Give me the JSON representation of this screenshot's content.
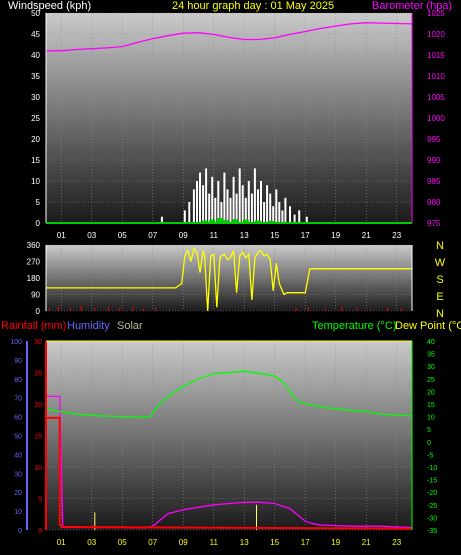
{
  "header": {
    "windspeed_label": "Windspeed (kph)",
    "title": "24 hour graph day : 01 May 2025",
    "barometer_label": "Barometer (hpa)"
  },
  "compass": [
    "N",
    "W",
    "S",
    "E",
    "N"
  ],
  "lower_header": {
    "rainfall_label": "Rainfall (mm)",
    "humidity_label": "Humidity",
    "solar_label": "Solar",
    "temperature_label": "Temperature (°C)",
    "dewpoint_label": "Dew Point (°C)"
  },
  "colors": {
    "windspeed": "#ffffff",
    "gust": "#00cc00",
    "barometer": "#ff00ff",
    "direction": "#ffff00",
    "rainfall": "#ff0000",
    "humidity": "#ff00ff",
    "solar": "#ffff66",
    "temperature": "#00ff00",
    "dewpoint": "#ffff00",
    "label_white": "#ffffff",
    "label_yellow": "#ffff00",
    "label_magenta": "#ff00ff",
    "label_red": "#ff0000",
    "label_blue": "#6666ff",
    "label_green": "#00ff00",
    "label_grey": "#bbbb99"
  },
  "chart_data": [
    {
      "type": "bar",
      "name_hint": "windspeed-barometer",
      "x_range": [
        0,
        24
      ],
      "x_ticks": [
        "01",
        "03",
        "05",
        "07",
        "09",
        "11",
        "13",
        "15",
        "17",
        "19",
        "21",
        "23"
      ],
      "x_tick_values": [
        1,
        3,
        5,
        7,
        9,
        11,
        13,
        15,
        17,
        19,
        21,
        23
      ],
      "y_left_range": [
        0,
        50
      ],
      "y_left_ticks": [
        "0",
        "5",
        "10",
        "15",
        "20",
        "25",
        "30",
        "35",
        "40",
        "45",
        "50"
      ],
      "y_left_tick_values": [
        0,
        5,
        10,
        15,
        20,
        25,
        30,
        35,
        40,
        45,
        50
      ],
      "y_right_range": [
        975,
        1025
      ],
      "y_right_ticks": [
        "975",
        "980",
        "985",
        "990",
        "995",
        "1000",
        "1005",
        "1010",
        "1015",
        "1020",
        "1025"
      ],
      "y_right_tick_values": [
        975,
        980,
        985,
        990,
        995,
        1000,
        1005,
        1010,
        1015,
        1020,
        1025
      ],
      "grid": true,
      "barometer": {
        "x": [
          0,
          1,
          2,
          3,
          4,
          5,
          6,
          7,
          8,
          9,
          10,
          11,
          12,
          13,
          14,
          15,
          16,
          17,
          18,
          19,
          20,
          21,
          22,
          23,
          24
        ],
        "values": [
          1016,
          1016,
          1016.3,
          1016.5,
          1016.7,
          1017,
          1018,
          1018.9,
          1019.6,
          1020.2,
          1020.3,
          1019.9,
          1019.2,
          1018.7,
          1018.7,
          1019.1,
          1019.9,
          1020.6,
          1021.3,
          1021.9,
          1022.4,
          1022.7,
          1022.6,
          1022.5,
          1022.4
        ]
      },
      "windspeed": {
        "x": [
          7.6,
          9.1,
          9.4,
          9.7,
          9.9,
          10.1,
          10.3,
          10.5,
          10.7,
          10.9,
          11.1,
          11.3,
          11.5,
          11.7,
          11.9,
          12.1,
          12.3,
          12.5,
          12.7,
          12.9,
          13.1,
          13.3,
          13.5,
          13.7,
          13.9,
          14.1,
          14.3,
          14.5,
          14.7,
          14.9,
          15.1,
          15.3,
          15.5,
          15.7,
          16.0,
          16.3,
          16.6,
          17.1
        ],
        "values": [
          1.5,
          3,
          5,
          8,
          10,
          12,
          9,
          13,
          7,
          11,
          6,
          10,
          5,
          12,
          8,
          6,
          11,
          7,
          13,
          9,
          6,
          10,
          7,
          13,
          8,
          10,
          5,
          9,
          7,
          4,
          8,
          5,
          3,
          6,
          4,
          2,
          3,
          1.5
        ]
      },
      "gust": {
        "x": [
          10.4,
          10.9,
          11.4,
          11.8,
          12.4,
          13.1,
          13.9,
          14.8
        ],
        "values": [
          0.6,
          0.8,
          1.2,
          0.7,
          0.9,
          0.8,
          0.6,
          0.5
        ]
      }
    },
    {
      "type": "line",
      "name_hint": "wind-direction",
      "x_range": [
        0,
        24
      ],
      "y_range": [
        0,
        360
      ],
      "y_ticks": [
        "0",
        "90",
        "180",
        "270",
        "360"
      ],
      "y_tick_values": [
        0,
        90,
        180,
        270,
        360
      ],
      "grid": true,
      "direction": {
        "x": [
          0,
          3,
          6,
          7,
          8.5,
          8.9,
          9.1,
          9.3,
          9.5,
          9.7,
          9.9,
          10.1,
          10.3,
          10.4,
          10.6,
          10.8,
          11.0,
          11.2,
          11.4,
          11.5,
          11.7,
          11.9,
          12.1,
          12.3,
          12.5,
          12.7,
          12.9,
          13.1,
          13.3,
          13.5,
          13.7,
          13.9,
          14.1,
          14.3,
          14.5,
          14.7,
          14.9,
          15.1,
          15.3,
          15.6,
          15.8,
          16.0,
          17.0,
          17.3,
          18,
          24
        ],
        "values": [
          126,
          126,
          126,
          126,
          126,
          150,
          300,
          330,
          270,
          340,
          320,
          210,
          330,
          300,
          0,
          300,
          310,
          20,
          290,
          300,
          310,
          280,
          290,
          330,
          100,
          300,
          320,
          290,
          310,
          60,
          290,
          320,
          330,
          300,
          310,
          280,
          110,
          260,
          150,
          90,
          100,
          100,
          100,
          230,
          230,
          230
        ]
      },
      "spikes": {
        "x": [
          0.2,
          0.8,
          1.6,
          2.3,
          3.2,
          4.1,
          4.8,
          5.7,
          6.4,
          7.2,
          8.1,
          16.4,
          17.2,
          18.3,
          19.4,
          20.4,
          21.3,
          22.4,
          23.3
        ],
        "values": [
          14,
          24,
          18,
          28,
          14,
          22,
          16,
          20,
          12,
          18,
          10,
          16,
          22,
          14,
          26,
          18,
          12,
          20,
          14
        ]
      }
    },
    {
      "type": "line",
      "name_hint": "rain-humidity-temperature",
      "x_range": [
        0,
        24
      ],
      "x_ticks": [
        "01",
        "03",
        "05",
        "07",
        "09",
        "11",
        "13",
        "15",
        "17",
        "19",
        "21",
        "23"
      ],
      "x_tick_values": [
        1,
        3,
        5,
        7,
        9,
        11,
        13,
        15,
        17,
        19,
        21,
        23
      ],
      "y_far_left_range": [
        0,
        100
      ],
      "y_far_left_ticks": [
        "0",
        "10",
        "20",
        "30",
        "40",
        "50",
        "60",
        "70",
        "80",
        "90",
        "100"
      ],
      "y_far_left_tick_values": [
        0,
        10,
        20,
        30,
        40,
        50,
        60,
        70,
        80,
        90,
        100
      ],
      "y_rain_range": [
        0,
        30
      ],
      "y_rain_ticks": [
        "0",
        "5",
        "10",
        "15",
        "20",
        "25",
        "30"
      ],
      "y_rain_tick_values": [
        0,
        5,
        10,
        15,
        20,
        25,
        30
      ],
      "y_right_range": [
        -35,
        40
      ],
      "y_right_ticks": [
        "-35",
        "-30",
        "-25",
        "-20",
        "-15",
        "-10",
        "-5",
        "0",
        "5",
        "10",
        "15",
        "20",
        "25",
        "30",
        "35",
        "40"
      ],
      "y_right_tick_values": [
        -35,
        -30,
        -25,
        -20,
        -15,
        -10,
        -5,
        0,
        5,
        10,
        15,
        20,
        25,
        30,
        35,
        40
      ],
      "grid": true,
      "rainfall": {
        "x": [
          0,
          0.9,
          0.9,
          1.1,
          24
        ],
        "values": [
          17.8,
          17.8,
          0.8,
          0.5,
          0.2
        ]
      },
      "temperature": {
        "x": [
          0,
          1,
          2,
          3,
          4,
          5,
          6,
          6.8,
          7.3,
          8,
          9,
          10,
          11,
          12,
          13,
          14,
          15,
          15.5,
          16,
          16.5,
          17,
          18,
          19,
          20,
          21,
          22,
          23,
          24
        ],
        "values": [
          13,
          12,
          11,
          10.5,
          10.2,
          10,
          9.8,
          9.8,
          14,
          18,
          22,
          25,
          27,
          27.5,
          28,
          27.2,
          26,
          24,
          20,
          16,
          15,
          14,
          13,
          12.5,
          12,
          11,
          10.6,
          10.4
        ]
      },
      "dewpoint": {
        "x": [
          0,
          0.9,
          1.1,
          5,
          6.5,
          7,
          7.5,
          8,
          9,
          10,
          11,
          12,
          13,
          14,
          15,
          16,
          16.5,
          17,
          17.5,
          18,
          20,
          22,
          24
        ],
        "values": [
          18,
          18,
          -34,
          -34,
          -34.2,
          -33.5,
          -31,
          -28.5,
          -27,
          -26,
          -25,
          -24.5,
          -24,
          -24,
          -24.5,
          -26.5,
          -29,
          -31.5,
          -32.5,
          -33,
          -33.5,
          -33.5,
          -34
        ]
      },
      "solar": {
        "x": [
          3.2,
          13.8
        ],
        "values": [
          2.8,
          4
        ]
      }
    }
  ]
}
